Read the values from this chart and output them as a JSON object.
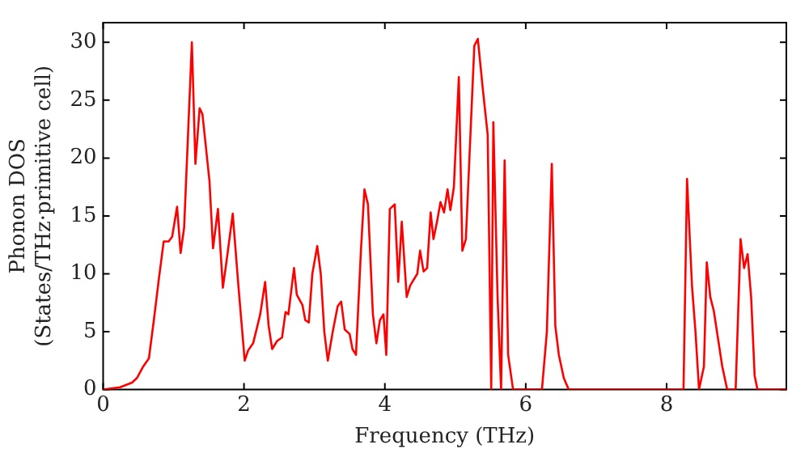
{
  "chart_data": {
    "type": "line",
    "xlabel": "Frequency (THz)",
    "ylabel": "Phonon DOS\n(States/THz·primitive cell)",
    "xlim": [
      0,
      9.7
    ],
    "ylim": [
      0,
      31.7
    ],
    "xticks": [
      0,
      2,
      4,
      6,
      8
    ],
    "yticks": [
      0,
      5,
      10,
      15,
      20,
      25,
      30
    ],
    "grid": false,
    "legend": false,
    "marker": "none",
    "line_style": "solid",
    "series": [
      {
        "color": "#ff0000",
        "x": [
          0,
          0.24,
          0.41,
          0.48,
          0.57,
          0.65,
          0.72,
          0.79,
          0.86,
          0.93,
          0.98,
          1.05,
          1.1,
          1.15,
          1.26,
          1.31,
          1.37,
          1.41,
          1.51,
          1.56,
          1.63,
          1.7,
          1.75,
          1.84,
          1.92,
          2.01,
          2.06,
          2.13,
          2.23,
          2.3,
          2.35,
          2.4,
          2.47,
          2.54,
          2.59,
          2.63,
          2.71,
          2.75,
          2.83,
          2.87,
          2.92,
          2.97,
          3.04,
          3.09,
          3.14,
          3.19,
          3.26,
          3.33,
          3.38,
          3.43,
          3.5,
          3.54,
          3.59,
          3.66,
          3.71,
          3.76,
          3.83,
          3.88,
          3.93,
          3.98,
          4.02,
          4.07,
          4.14,
          4.19,
          4.24,
          4.31,
          4.36,
          4.46,
          4.5,
          4.55,
          4.6,
          4.65,
          4.69,
          4.74,
          4.79,
          4.84,
          4.89,
          4.93,
          4.98,
          5.05,
          5.1,
          5.15,
          5.27,
          5.32,
          5.39,
          5.46,
          5.51,
          5.54,
          5.6,
          5.65,
          5.7,
          5.75,
          5.82,
          6.23,
          6.3,
          6.37,
          6.42,
          6.47,
          6.54,
          6.61,
          8.24,
          8.29,
          8.36,
          8.41,
          8.46,
          8.53,
          8.57,
          8.62,
          8.67,
          8.74,
          8.79,
          8.86,
          8.98,
          9.05,
          9.1,
          9.15,
          9.2,
          9.25,
          9.29,
          9.7
        ],
        "values": [
          0,
          0.2,
          0.6,
          1,
          2,
          2.7,
          6,
          9.5,
          12.8,
          12.8,
          13.2,
          15.8,
          11.8,
          14,
          30,
          19.5,
          24.3,
          23.8,
          18,
          12.2,
          15.6,
          8.8,
          11,
          15.2,
          9,
          2.5,
          3.4,
          4,
          6.5,
          9.3,
          5.5,
          3.5,
          4.2,
          4.5,
          6.7,
          6.5,
          10.5,
          8.2,
          7.3,
          6,
          5.8,
          10,
          12.4,
          10,
          5,
          2.5,
          5,
          7.2,
          7.6,
          5.2,
          4.8,
          3.5,
          3,
          12,
          17.3,
          16,
          6.5,
          4,
          6,
          6.5,
          3,
          15.6,
          16,
          9.3,
          14.5,
          8,
          9,
          10,
          12,
          10.2,
          10.5,
          15.3,
          13,
          14.5,
          16.2,
          15.3,
          17.3,
          15.5,
          17.5,
          27,
          12,
          13,
          29.7,
          30.3,
          26,
          22,
          0,
          23.1,
          8,
          0,
          19.8,
          3,
          0,
          0,
          5,
          19.5,
          5.5,
          3,
          1,
          0,
          0,
          18.2,
          9,
          5,
          0,
          2,
          11,
          8,
          6.8,
          4,
          2,
          0,
          0,
          13,
          10.5,
          11.7,
          8,
          1.2,
          0,
          0
        ]
      }
    ]
  }
}
